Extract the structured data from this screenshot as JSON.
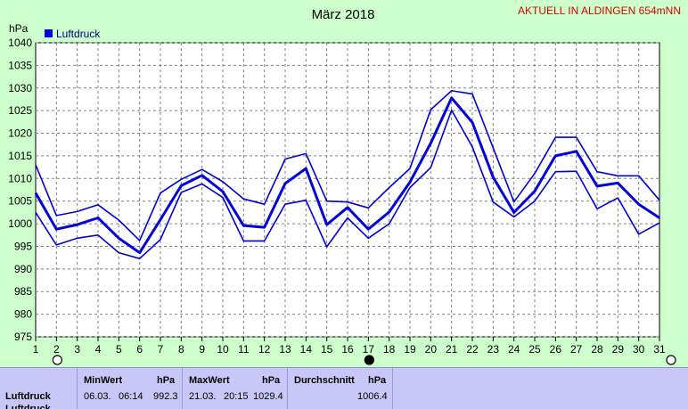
{
  "chart_data": {
    "type": "line",
    "title": "März 2018",
    "subtitle": "AKTUELL IN ALDINGEN 654mNN",
    "ylabel": "hPa",
    "ylim": [
      975,
      1040
    ],
    "yticks": [
      975,
      980,
      985,
      990,
      995,
      1000,
      1005,
      1010,
      1015,
      1020,
      1025,
      1030,
      1035,
      1040
    ],
    "x": [
      1,
      2,
      3,
      4,
      5,
      6,
      7,
      8,
      9,
      10,
      11,
      12,
      13,
      14,
      15,
      16,
      17,
      18,
      19,
      20,
      21,
      22,
      23,
      24,
      25,
      26,
      27,
      28,
      29,
      30,
      31
    ],
    "legend": [
      "Luftdruck"
    ],
    "colors": {
      "line": "#0000dd",
      "grid": "#808080",
      "plot_bg": "#ffffff"
    },
    "series": [
      {
        "name": "Luftdruck",
        "role": "max",
        "values": [
          1013,
          1001.8,
          1002.7,
          1004.2,
          1000.8,
          996.3,
          1006.8,
          1009.8,
          1012,
          1009.3,
          1005.5,
          1004.3,
          1014.3,
          1015.5,
          1005,
          1004.8,
          1003.5,
          1008,
          1012.2,
          1025.2,
          1029.4,
          1028.7,
          1016.8,
          1004.8,
          1011.1,
          1019.1,
          1019.1,
          1011.5,
          1010.6,
          1010.6,
          1005.2
        ]
      },
      {
        "name": "Luftdruck",
        "role": "mean",
        "values": [
          1006.8,
          998.8,
          999.8,
          1001.3,
          996.8,
          993.6,
          1000.9,
          1008.4,
          1010.7,
          1007.1,
          999.6,
          999.2,
          1008.9,
          1012.2,
          999.8,
          1003.6,
          998.8,
          1002.6,
          1009.2,
          1017.8,
          1027.8,
          1022.4,
          1010.3,
          1002.5,
          1007.2,
          1015,
          1016,
          1008.3,
          1009,
          1004.3,
          1001.3
        ]
      },
      {
        "name": "Luftdruck",
        "role": "min",
        "values": [
          1002.5,
          995.3,
          996.8,
          997.5,
          993.6,
          992.3,
          996.5,
          1006.9,
          1008.8,
          1005.8,
          996.2,
          996.2,
          1004.3,
          1005.2,
          994.9,
          1001.3,
          996.8,
          1000,
          1008,
          1012.4,
          1025.1,
          1017,
          1004.8,
          1001.5,
          1005,
          1011.5,
          1011.6,
          1003.3,
          1005.7,
          997.7,
          1000.2
        ]
      }
    ],
    "moon_phases": [
      {
        "day": 2,
        "phase": "full"
      },
      {
        "day": 17,
        "phase": "new"
      },
      {
        "day": 31,
        "phase": "full"
      }
    ]
  },
  "stats": {
    "row_labels": [
      "Luftdruck",
      "Luftdruck"
    ],
    "min": {
      "header": "MinWert",
      "unit": "hPa",
      "date": "06.03.",
      "time": "06:14",
      "value": "992.3"
    },
    "max": {
      "header": "MaxWert",
      "unit": "hPa",
      "date": "21.03.",
      "time": "20:15",
      "value": "1029.4"
    },
    "avg": {
      "header": "Durchschnitt",
      "unit": "hPa",
      "value": "1006.4"
    }
  }
}
